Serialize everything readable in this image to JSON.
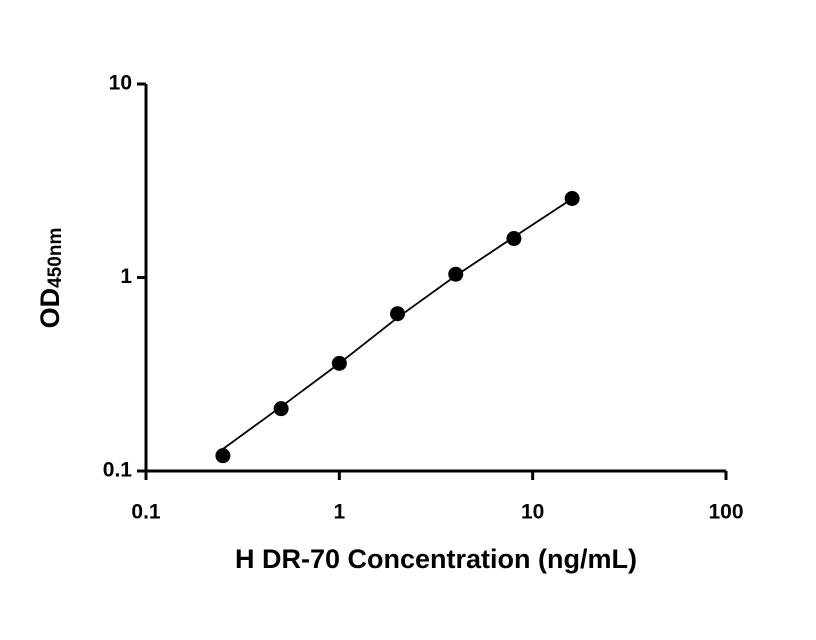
{
  "chart_data": {
    "type": "scatter",
    "x_label": "H DR-70 Concentration (ng/mL)",
    "y_label": {
      "main": "OD",
      "sub": "450nm"
    },
    "x": [
      0.25,
      0.5,
      1,
      2,
      4,
      8,
      16
    ],
    "values": [
      0.12,
      0.21,
      0.36,
      0.65,
      1.04,
      1.59,
      2.56
    ],
    "color": "#000000",
    "fit": {
      "x": [
        0.25,
        0.5,
        1,
        2,
        4,
        8,
        16
      ],
      "values": [
        0.13,
        0.215,
        0.36,
        0.62,
        1.02,
        1.62,
        2.55
      ]
    },
    "xscale": "log",
    "yscale": "log",
    "xlim": [
      0.1,
      100
    ],
    "ylim": [
      0.1,
      10
    ],
    "xticks": [
      0.1,
      1,
      10,
      100
    ],
    "yticks": [
      0.1,
      1,
      10
    ]
  }
}
